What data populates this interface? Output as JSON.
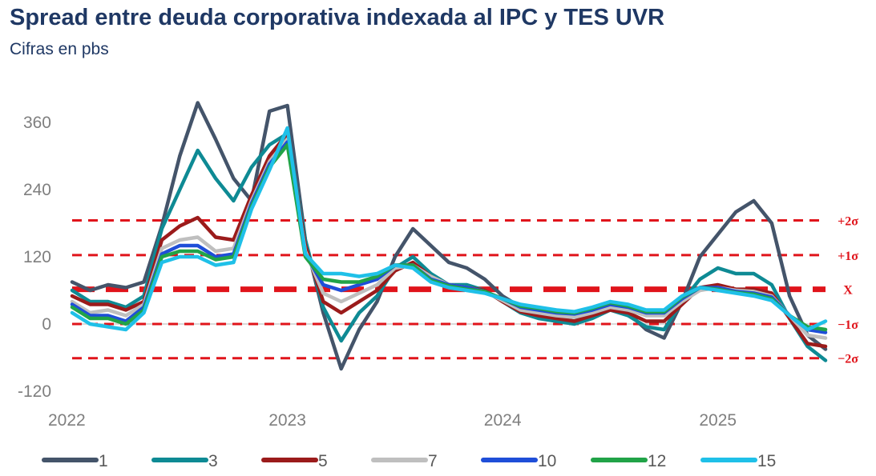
{
  "header": {
    "title": "Spread entre deuda corporativa indexada al IPC y TES UVR",
    "subtitle": "Cifras en pbs"
  },
  "chart_data": {
    "type": "line",
    "title": "Spread entre deuda corporativa indexada al IPC y TES UVR",
    "subtitle": "Cifras en pbs",
    "xlabel": "",
    "ylabel": "",
    "x_ticks": [
      "2022",
      "2023",
      "2024",
      "2025"
    ],
    "x_range": [
      "2022-01",
      "2025-07"
    ],
    "y_ticks": [
      -120,
      0,
      120,
      240,
      360
    ],
    "ylim": [
      -130,
      420
    ],
    "grid": false,
    "legend_position": "bottom",
    "reference_lines": [
      {
        "label": "+2σ",
        "value": 185,
        "color": "#E0141B",
        "style": "dashed"
      },
      {
        "label": "+1σ",
        "value": 123,
        "color": "#E0141B",
        "style": "dashed"
      },
      {
        "label": "X",
        "value": 62,
        "color": "#E0141B",
        "style": "dashed"
      },
      {
        "label": "−1σ",
        "value": 0,
        "color": "#E0141B",
        "style": "dashed"
      },
      {
        "label": "−2σ",
        "value": -61,
        "color": "#E0141B",
        "style": "dashed"
      }
    ],
    "x": [
      "2022-01",
      "2022-02",
      "2022-03",
      "2022-04",
      "2022-05",
      "2022-06",
      "2022-07",
      "2022-08",
      "2022-09",
      "2022-10",
      "2022-11",
      "2022-12",
      "2023-01",
      "2023-02",
      "2023-03",
      "2023-04",
      "2023-05",
      "2023-06",
      "2023-07",
      "2023-08",
      "2023-09",
      "2023-10",
      "2023-11",
      "2023-12",
      "2024-01",
      "2024-02",
      "2024-03",
      "2024-04",
      "2024-05",
      "2024-06",
      "2024-07",
      "2024-08",
      "2024-09",
      "2024-10",
      "2024-11",
      "2024-12",
      "2025-01",
      "2025-02",
      "2025-03",
      "2025-04",
      "2025-05",
      "2025-06",
      "2025-07"
    ],
    "series": [
      {
        "name": "1",
        "color": "#44546A",
        "values": [
          75,
          60,
          70,
          65,
          75,
          175,
          300,
          395,
          330,
          260,
          220,
          380,
          390,
          150,
          20,
          -80,
          -10,
          40,
          120,
          170,
          140,
          110,
          100,
          80,
          50,
          30,
          20,
          10,
          5,
          20,
          30,
          20,
          -10,
          -25,
          40,
          120,
          160,
          200,
          220,
          180,
          50,
          -20,
          -45
        ]
      },
      {
        "name": "3",
        "color": "#0E8A94",
        "values": [
          60,
          40,
          40,
          30,
          50,
          170,
          240,
          310,
          260,
          220,
          280,
          320,
          340,
          150,
          30,
          -30,
          20,
          50,
          100,
          120,
          90,
          70,
          70,
          60,
          40,
          20,
          10,
          5,
          0,
          10,
          25,
          15,
          -5,
          -10,
          40,
          80,
          100,
          90,
          90,
          70,
          10,
          -40,
          -65
        ]
      },
      {
        "name": "5",
        "color": "#9B1B1B",
        "values": [
          50,
          35,
          35,
          25,
          40,
          150,
          175,
          190,
          155,
          150,
          230,
          300,
          340,
          140,
          40,
          20,
          40,
          60,
          95,
          110,
          85,
          70,
          65,
          60,
          40,
          22,
          15,
          10,
          5,
          15,
          25,
          20,
          5,
          5,
          35,
          65,
          70,
          62,
          62,
          55,
          10,
          -35,
          -40
        ]
      },
      {
        "name": "7",
        "color": "#BFBFBF",
        "values": [
          40,
          20,
          25,
          15,
          35,
          135,
          150,
          155,
          130,
          135,
          220,
          290,
          330,
          130,
          55,
          40,
          55,
          70,
          100,
          105,
          85,
          70,
          65,
          58,
          42,
          25,
          20,
          15,
          12,
          20,
          30,
          25,
          15,
          15,
          40,
          60,
          65,
          60,
          58,
          50,
          15,
          -20,
          -25
        ]
      },
      {
        "name": "10",
        "color": "#1F4ED8",
        "values": [
          35,
          15,
          15,
          5,
          30,
          125,
          140,
          140,
          120,
          125,
          215,
          285,
          325,
          125,
          70,
          60,
          70,
          80,
          105,
          105,
          80,
          70,
          65,
          58,
          45,
          30,
          25,
          20,
          18,
          25,
          35,
          30,
          20,
          20,
          45,
          65,
          65,
          58,
          55,
          48,
          15,
          -10,
          -15
        ]
      },
      {
        "name": "12",
        "color": "#21A348",
        "values": [
          30,
          10,
          10,
          0,
          25,
          120,
          130,
          130,
          115,
          120,
          210,
          280,
          320,
          120,
          80,
          75,
          75,
          85,
          105,
          105,
          78,
          68,
          62,
          58,
          45,
          32,
          28,
          22,
          20,
          28,
          38,
          32,
          22,
          22,
          48,
          65,
          62,
          56,
          53,
          45,
          15,
          -5,
          -10
        ]
      },
      {
        "name": "15",
        "color": "#1FC0E8",
        "values": [
          20,
          0,
          -5,
          -10,
          20,
          110,
          120,
          120,
          105,
          110,
          205,
          275,
          350,
          125,
          90,
          90,
          85,
          90,
          105,
          100,
          75,
          65,
          60,
          55,
          45,
          35,
          30,
          25,
          22,
          30,
          40,
          35,
          25,
          25,
          50,
          65,
          60,
          55,
          50,
          42,
          15,
          -10,
          5
        ]
      }
    ]
  }
}
